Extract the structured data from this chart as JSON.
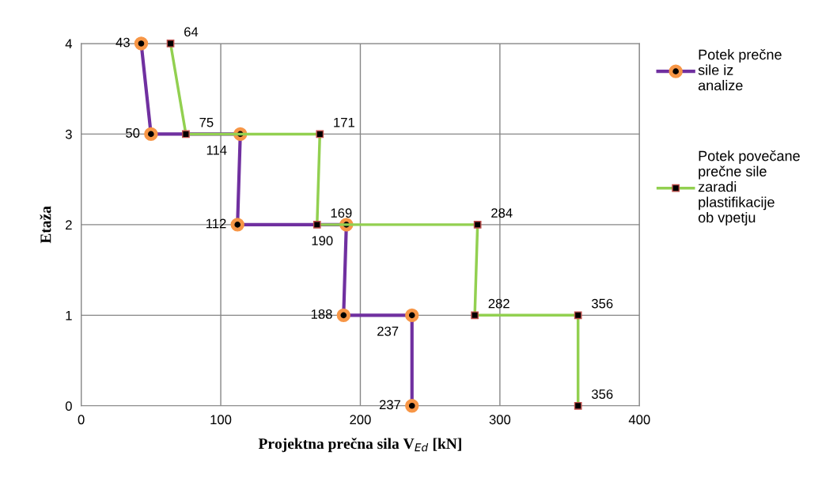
{
  "chart_data": {
    "type": "line",
    "xlabel": "Projektna prečna sila V$_{Ed}$ [kN]",
    "ylabel": "Etaža",
    "xlim": [
      0,
      400
    ],
    "xticks": [
      0,
      100,
      200,
      300,
      400
    ],
    "ylim": [
      0,
      4
    ],
    "yticks": [
      0,
      1,
      2,
      3,
      4
    ],
    "grid": true,
    "legend": "right",
    "line_style": "solid",
    "series": [
      {
        "name": "Potek prečne sile iz analize",
        "color": "#7030a0",
        "marker": "circle",
        "x": [
          43,
          50,
          114,
          112,
          190,
          188,
          237,
          237
        ],
        "values": [
          4,
          3,
          3,
          2,
          2,
          1,
          1,
          0
        ]
      },
      {
        "name": "Potek povečane prečne sile zaradi plastifikacije ob vpetju",
        "color": "#92d050",
        "marker": "square",
        "x": [
          64,
          75,
          171,
          169,
          284,
          282,
          356,
          356
        ],
        "values": [
          4,
          3,
          3,
          2,
          2,
          1,
          1,
          0
        ]
      }
    ],
    "annotations": [
      {
        "text": "43",
        "x": 43,
        "y": 4
      },
      {
        "text": "50",
        "x": 50,
        "y": 3
      },
      {
        "text": "114",
        "x": 114,
        "y": 3
      },
      {
        "text": "112",
        "x": 112,
        "y": 2
      },
      {
        "text": "190",
        "x": 190,
        "y": 2
      },
      {
        "text": "188",
        "x": 188,
        "y": 1
      },
      {
        "text": "237",
        "x": 237,
        "y": 1
      },
      {
        "text": "237",
        "x": 237,
        "y": 0
      },
      {
        "text": "64",
        "x": 64,
        "y": 4
      },
      {
        "text": "75",
        "x": 75,
        "y": 3
      },
      {
        "text": "171",
        "x": 171,
        "y": 3
      },
      {
        "text": "169",
        "x": 169,
        "y": 2
      },
      {
        "text": "284",
        "x": 284,
        "y": 2
      },
      {
        "text": "282",
        "x": 282,
        "y": 1
      },
      {
        "text": "356",
        "x": 356,
        "y": 1
      },
      {
        "text": "356",
        "x": 356,
        "y": 0
      }
    ]
  }
}
